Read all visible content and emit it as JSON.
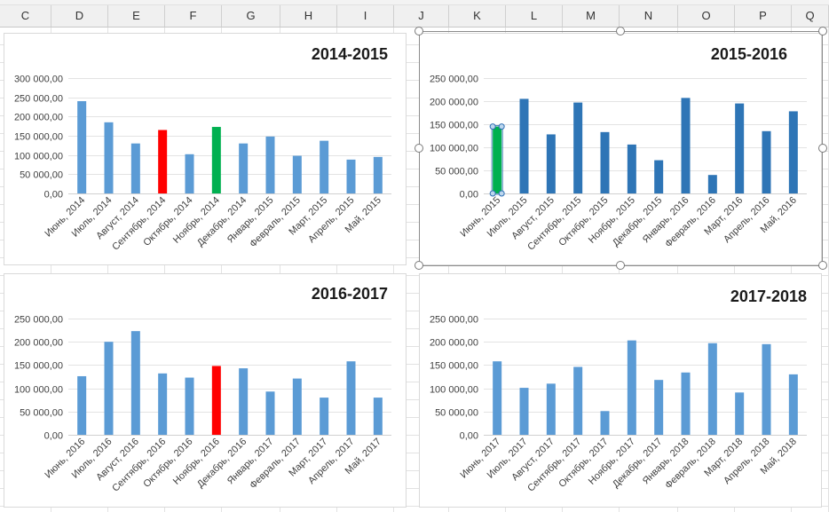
{
  "spreadsheet": {
    "columns": [
      "C",
      "D",
      "E",
      "F",
      "G",
      "H",
      "I",
      "J",
      "K",
      "L",
      "M",
      "N",
      "O",
      "P",
      "Q"
    ]
  },
  "charts": [
    {
      "id": "c1",
      "title": "2014-2015",
      "chart_data": {
        "type": "bar",
        "title": "2014-2015",
        "categories": [
          "Июнь, 2014",
          "Июль, 2014",
          "Август, 2014",
          "Сентябрь, 2014",
          "Октябрь, 2014",
          "Ноябрь, 2014",
          "Декабрь, 2014",
          "Январь, 2015",
          "Февраль, 2015",
          "Март, 2015",
          "Апрель, 2015",
          "Май, 2015"
        ],
        "values": [
          240000,
          185000,
          130000,
          165000,
          102000,
          173000,
          130000,
          148000,
          98000,
          137000,
          88000,
          95000
        ],
        "bar_colors": [
          "#5b9bd5",
          "#5b9bd5",
          "#5b9bd5",
          "#ff0000",
          "#5b9bd5",
          "#00b050",
          "#5b9bd5",
          "#5b9bd5",
          "#5b9bd5",
          "#5b9bd5",
          "#5b9bd5",
          "#5b9bd5"
        ],
        "ylim": [
          0,
          300000
        ],
        "yticks": [
          0,
          50000,
          100000,
          150000,
          200000,
          250000,
          300000
        ],
        "ytick_labels": [
          "0,00",
          "50 000,00",
          "100 000,00",
          "150 000,00",
          "200 000,00",
          "250 000,00",
          "300 000,00"
        ],
        "grid": true
      }
    },
    {
      "id": "c2",
      "title": "2015-2016",
      "chart_data": {
        "type": "bar",
        "title": "2015-2016",
        "categories": [
          "Июнь, 2015",
          "Июль, 2015",
          "Август, 2015",
          "Сентябрь, 2015",
          "Октябрь, 2015",
          "Ноябрь, 2015",
          "Декабрь, 2015",
          "Январь, 2016",
          "Февраль, 2016",
          "Март, 2016",
          "Апрель, 2016",
          "Май, 2016"
        ],
        "values": [
          145000,
          205000,
          128000,
          197000,
          133000,
          106000,
          72000,
          207000,
          40000,
          195000,
          135000,
          178000
        ],
        "bar_colors": [
          "#00b050",
          "#2e75b6",
          "#2e75b6",
          "#2e75b6",
          "#2e75b6",
          "#2e75b6",
          "#2e75b6",
          "#2e75b6",
          "#2e75b6",
          "#2e75b6",
          "#2e75b6",
          "#2e75b6"
        ],
        "ylim": [
          0,
          250000
        ],
        "yticks": [
          0,
          50000,
          100000,
          150000,
          200000,
          250000
        ],
        "ytick_labels": [
          "0,00",
          "50 000,00",
          "100 000,00",
          "150 000,00",
          "200 000,00",
          "250 000,00"
        ],
        "grid": true,
        "selected_bar": 0
      }
    },
    {
      "id": "c3",
      "title": "2016-2017",
      "chart_data": {
        "type": "bar",
        "title": "2016-2017",
        "categories": [
          "Июнь, 2016",
          "Июль, 2016",
          "Август, 2016",
          "Сентябрь, 2016",
          "Октябрь, 2016",
          "Ноябрь, 2016",
          "Декабрь, 2016",
          "Январь, 2017",
          "Февраль, 2017",
          "Март, 2017",
          "Апрель, 2017",
          "Май, 2017"
        ],
        "values": [
          126000,
          200000,
          223000,
          132000,
          123000,
          148000,
          143000,
          93000,
          121000,
          80000,
          158000,
          80000
        ],
        "bar_colors": [
          "#5b9bd5",
          "#5b9bd5",
          "#5b9bd5",
          "#5b9bd5",
          "#5b9bd5",
          "#ff0000",
          "#5b9bd5",
          "#5b9bd5",
          "#5b9bd5",
          "#5b9bd5",
          "#5b9bd5",
          "#5b9bd5"
        ],
        "ylim": [
          0,
          250000
        ],
        "yticks": [
          0,
          50000,
          100000,
          150000,
          200000,
          250000
        ],
        "ytick_labels": [
          "0,00",
          "50 000,00",
          "100 000,00",
          "150 000,00",
          "200 000,00",
          "250 000,00"
        ],
        "grid": true
      }
    },
    {
      "id": "c4",
      "title": "2017-2018",
      "chart_data": {
        "type": "bar",
        "title": "2017-2018",
        "categories": [
          "Июнь, 2017",
          "Июль, 2017",
          "Август, 2017",
          "Сентябрь, 2017",
          "Октябрь, 2017",
          "Ноябрь, 2017",
          "Декабрь, 2017",
          "Январь, 2018",
          "Февраль, 2018",
          "Март, 2018",
          "Апрель, 2018",
          "Май, 2018"
        ],
        "values": [
          158000,
          101000,
          110000,
          146000,
          51000,
          203000,
          118000,
          134000,
          197000,
          91000,
          195000,
          130000
        ],
        "bar_colors": [
          "#5b9bd5",
          "#5b9bd5",
          "#5b9bd5",
          "#5b9bd5",
          "#5b9bd5",
          "#5b9bd5",
          "#5b9bd5",
          "#5b9bd5",
          "#5b9bd5",
          "#5b9bd5",
          "#5b9bd5",
          "#5b9bd5"
        ],
        "ylim": [
          0,
          250000
        ],
        "yticks": [
          0,
          50000,
          100000,
          150000,
          200000,
          250000
        ],
        "ytick_labels": [
          "0,00",
          "50 000,00",
          "100 000,00",
          "150 000,00",
          "200 000,00",
          "250 000,00"
        ],
        "grid": true
      }
    }
  ]
}
